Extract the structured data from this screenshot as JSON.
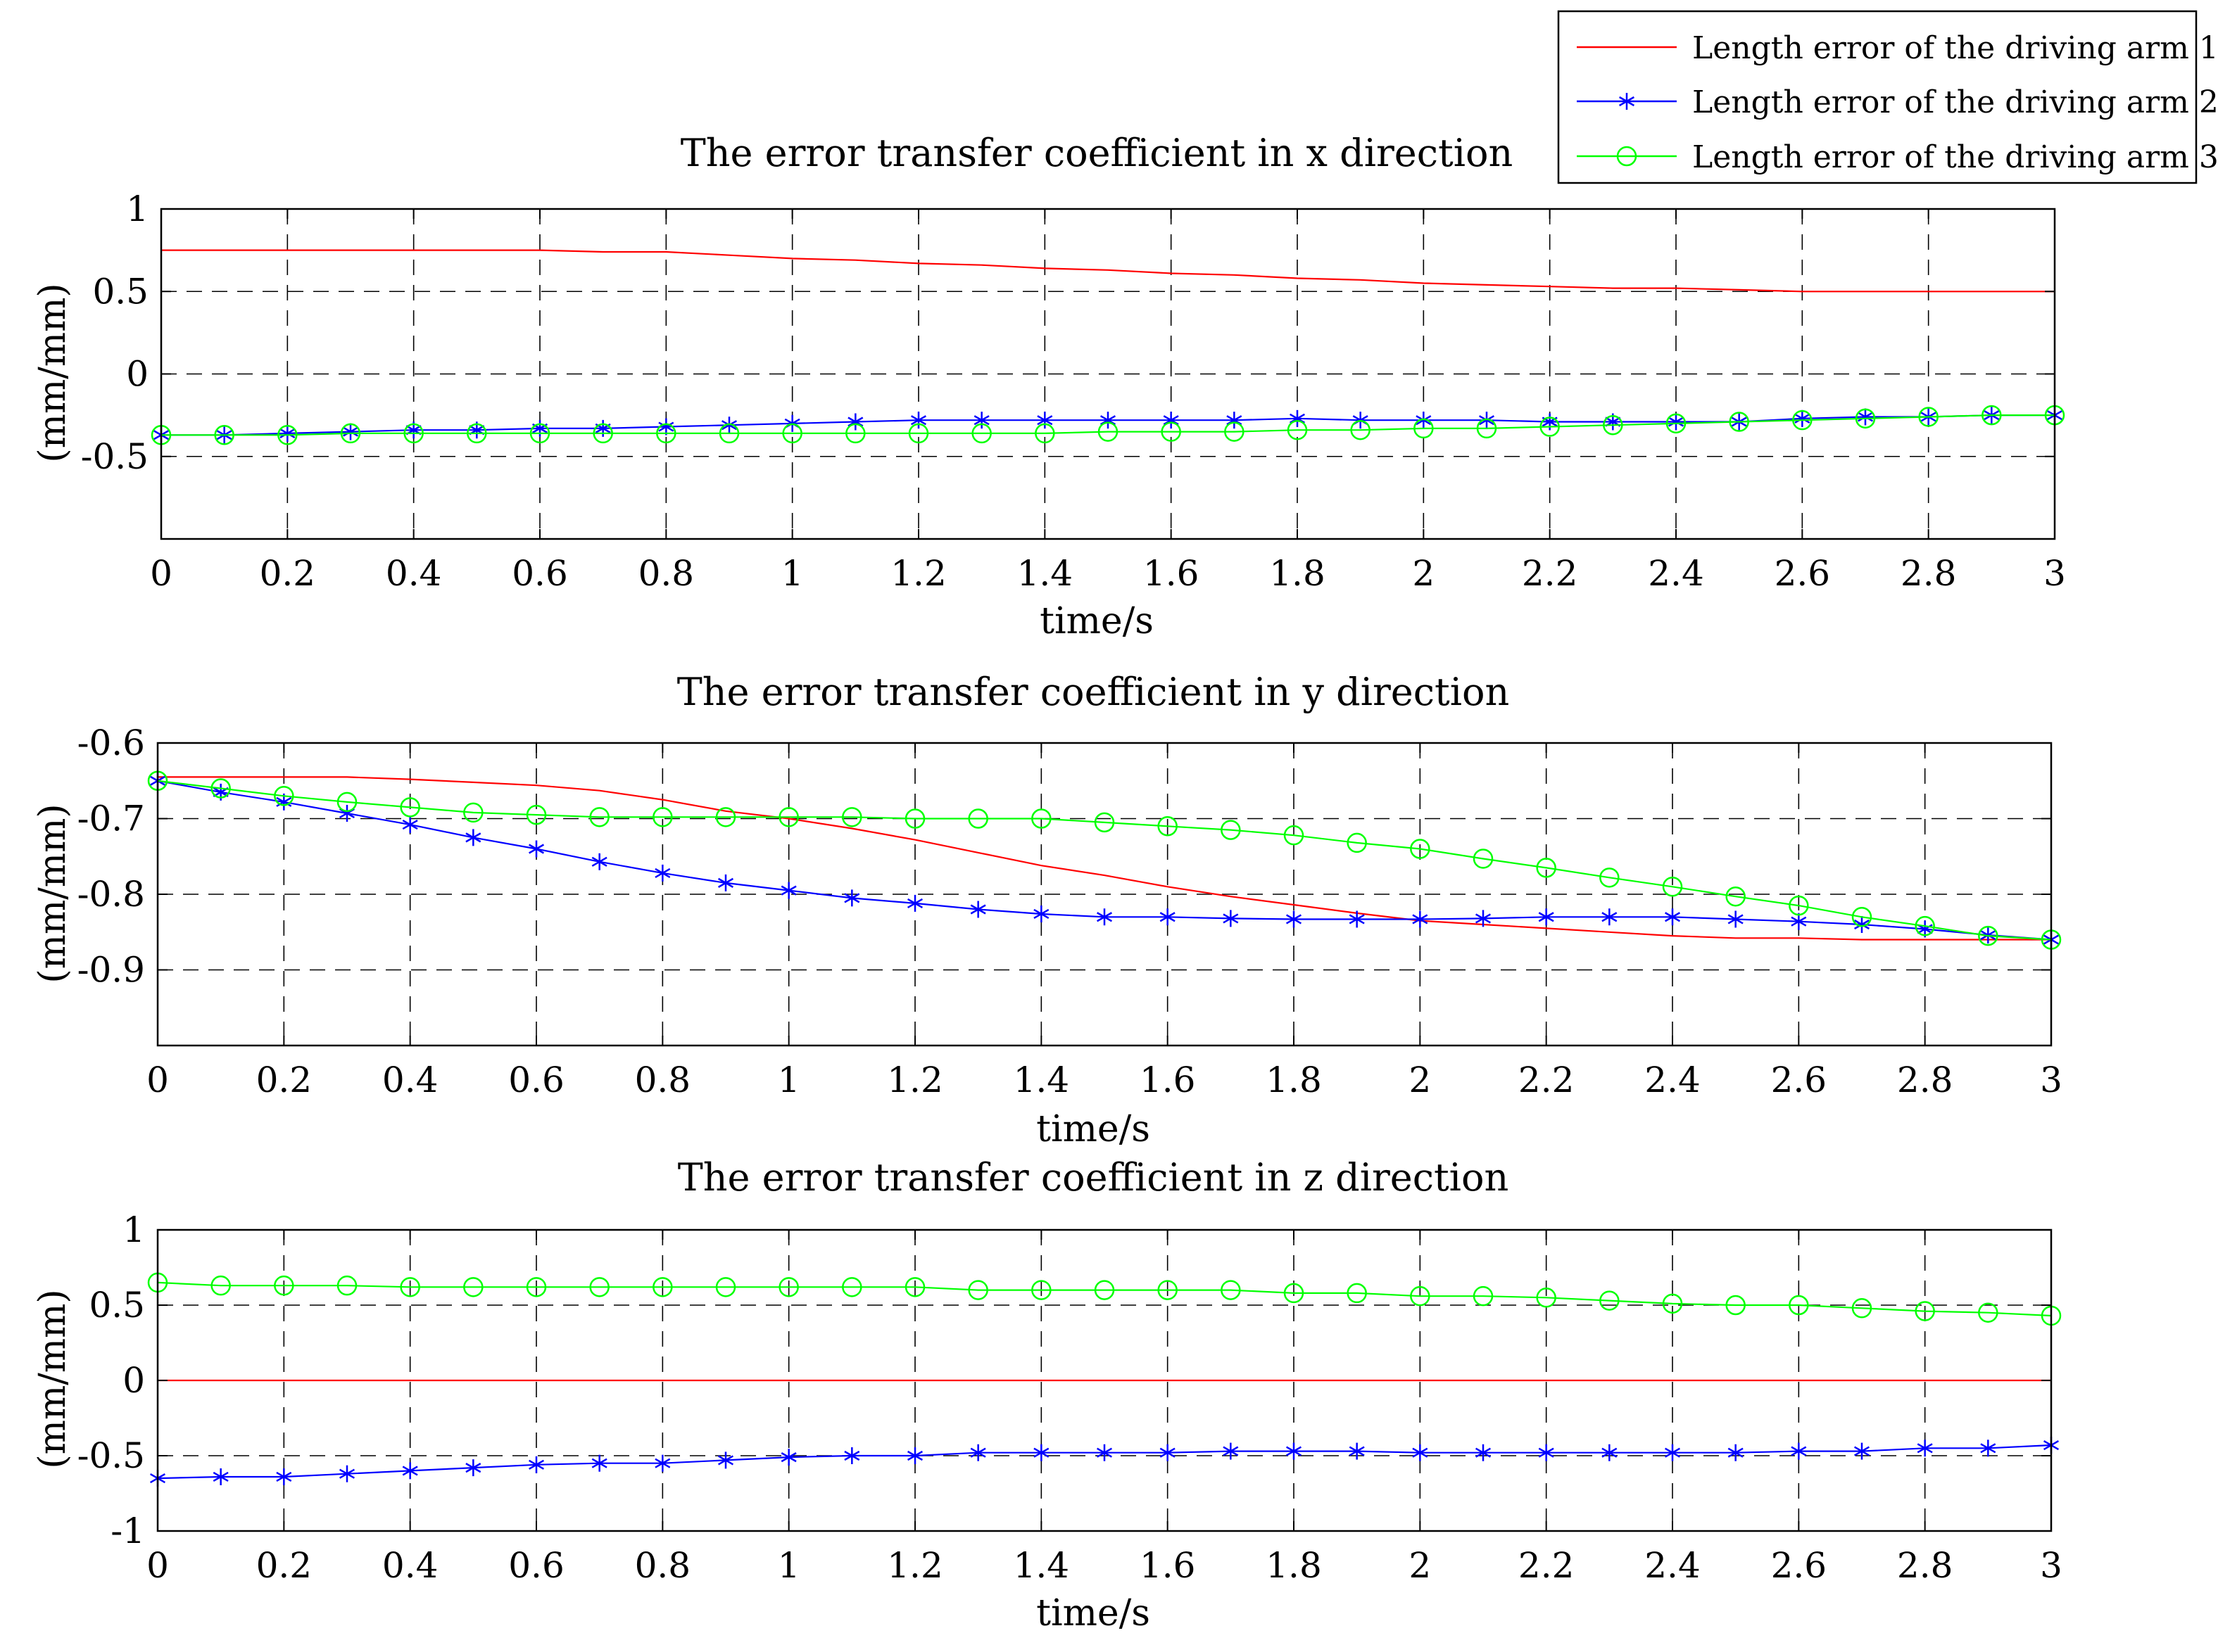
{
  "chart_data": [
    {
      "type": "line",
      "title": "The error transfer coefficient in x direction",
      "xlabel": "time/s",
      "ylabel": "(mm/mm)",
      "xlim": [
        0,
        3
      ],
      "ylim": [
        -1,
        1
      ],
      "grid": true,
      "x_ticks": [
        "0",
        "0.2",
        "0.4",
        "0.6",
        "0.8",
        "1",
        "1.2",
        "1.4",
        "1.6",
        "1.8",
        "2",
        "2.2",
        "2.4",
        "2.6",
        "2.8",
        "3"
      ],
      "y_ticks": [
        "1",
        "0.5",
        "0",
        "-0.5"
      ],
      "x": [
        0,
        0.1,
        0.2,
        0.3,
        0.4,
        0.5,
        0.6,
        0.7,
        0.8,
        0.9,
        1.0,
        1.1,
        1.2,
        1.3,
        1.4,
        1.5,
        1.6,
        1.7,
        1.8,
        1.9,
        2.0,
        2.1,
        2.2,
        2.3,
        2.4,
        2.5,
        2.6,
        2.7,
        2.8,
        2.9,
        3.0
      ],
      "series": [
        {
          "name": "Length error of the driving arm 1",
          "values": [
            0.75,
            0.75,
            0.75,
            0.75,
            0.75,
            0.75,
            0.75,
            0.74,
            0.74,
            0.72,
            0.7,
            0.69,
            0.67,
            0.66,
            0.64,
            0.63,
            0.61,
            0.6,
            0.58,
            0.57,
            0.55,
            0.54,
            0.53,
            0.52,
            0.52,
            0.51,
            0.5,
            0.5,
            0.5,
            0.5,
            0.5
          ]
        },
        {
          "name": "Length error of the driving arm 2",
          "values": [
            -0.37,
            -0.37,
            -0.36,
            -0.35,
            -0.34,
            -0.34,
            -0.33,
            -0.33,
            -0.32,
            -0.31,
            -0.3,
            -0.29,
            -0.28,
            -0.28,
            -0.28,
            -0.28,
            -0.28,
            -0.28,
            -0.27,
            -0.28,
            -0.28,
            -0.28,
            -0.29,
            -0.29,
            -0.29,
            -0.29,
            -0.27,
            -0.26,
            -0.26,
            -0.25,
            -0.25
          ]
        },
        {
          "name": "Length error of the driving arm 3",
          "values": [
            -0.37,
            -0.37,
            -0.37,
            -0.36,
            -0.36,
            -0.36,
            -0.36,
            -0.36,
            -0.36,
            -0.36,
            -0.36,
            -0.36,
            -0.36,
            -0.36,
            -0.36,
            -0.35,
            -0.35,
            -0.35,
            -0.34,
            -0.34,
            -0.33,
            -0.33,
            -0.32,
            -0.31,
            -0.3,
            -0.29,
            -0.28,
            -0.27,
            -0.26,
            -0.25,
            -0.25
          ]
        }
      ]
    },
    {
      "type": "line",
      "title": "The error transfer coefficient in y direction",
      "xlabel": "time/s",
      "ylabel": "(mm/mm)",
      "xlim": [
        0,
        3
      ],
      "ylim": [
        -1,
        -0.6
      ],
      "grid": true,
      "x_ticks": [
        "0",
        "0.2",
        "0.4",
        "0.6",
        "0.8",
        "1",
        "1.2",
        "1.4",
        "1.6",
        "1.8",
        "2",
        "2.2",
        "2.4",
        "2.6",
        "2.8",
        "3"
      ],
      "y_ticks": [
        "-0.6",
        "-0.7",
        "-0.8",
        "-0.9"
      ],
      "x": [
        0,
        0.1,
        0.2,
        0.3,
        0.4,
        0.5,
        0.6,
        0.7,
        0.8,
        0.9,
        1.0,
        1.1,
        1.2,
        1.3,
        1.4,
        1.5,
        1.6,
        1.7,
        1.8,
        1.9,
        2.0,
        2.1,
        2.2,
        2.3,
        2.4,
        2.5,
        2.6,
        2.7,
        2.8,
        2.9,
        3.0
      ],
      "series": [
        {
          "name": "Length error of the driving arm 1",
          "values": [
            -0.645,
            -0.645,
            -0.645,
            -0.645,
            -0.648,
            -0.652,
            -0.656,
            -0.663,
            -0.675,
            -0.69,
            -0.7,
            -0.713,
            -0.728,
            -0.745,
            -0.762,
            -0.775,
            -0.79,
            -0.803,
            -0.814,
            -0.825,
            -0.835,
            -0.84,
            -0.845,
            -0.85,
            -0.855,
            -0.858,
            -0.858,
            -0.86,
            -0.86,
            -0.86,
            -0.86
          ]
        },
        {
          "name": "Length error of the driving arm 2",
          "values": [
            -0.65,
            -0.665,
            -0.678,
            -0.693,
            -0.708,
            -0.725,
            -0.74,
            -0.757,
            -0.772,
            -0.785,
            -0.795,
            -0.805,
            -0.812,
            -0.82,
            -0.826,
            -0.83,
            -0.83,
            -0.832,
            -0.833,
            -0.833,
            -0.833,
            -0.832,
            -0.83,
            -0.83,
            -0.83,
            -0.833,
            -0.836,
            -0.84,
            -0.846,
            -0.854,
            -0.86
          ]
        },
        {
          "name": "Length error of the driving arm 3",
          "values": [
            -0.65,
            -0.66,
            -0.67,
            -0.678,
            -0.685,
            -0.692,
            -0.695,
            -0.698,
            -0.698,
            -0.698,
            -0.698,
            -0.698,
            -0.7,
            -0.7,
            -0.7,
            -0.705,
            -0.71,
            -0.715,
            -0.722,
            -0.732,
            -0.74,
            -0.753,
            -0.765,
            -0.778,
            -0.79,
            -0.803,
            -0.815,
            -0.83,
            -0.842,
            -0.855,
            -0.86
          ]
        }
      ]
    },
    {
      "type": "line",
      "title": "The error transfer coefficient in z direction",
      "xlabel": "time/s",
      "ylabel": "(mm/mm)",
      "xlim": [
        0,
        3
      ],
      "ylim": [
        -1,
        1
      ],
      "grid": true,
      "x_ticks": [
        "0",
        "0.2",
        "0.4",
        "0.6",
        "0.8",
        "1",
        "1.2",
        "1.4",
        "1.6",
        "1.8",
        "2",
        "2.2",
        "2.4",
        "2.6",
        "2.8",
        "3"
      ],
      "y_ticks": [
        "1",
        "0.5",
        "0",
        "-0.5",
        "-1"
      ],
      "x": [
        0,
        0.1,
        0.2,
        0.3,
        0.4,
        0.5,
        0.6,
        0.7,
        0.8,
        0.9,
        1.0,
        1.1,
        1.2,
        1.3,
        1.4,
        1.5,
        1.6,
        1.7,
        1.8,
        1.9,
        2.0,
        2.1,
        2.2,
        2.3,
        2.4,
        2.5,
        2.6,
        2.7,
        2.8,
        2.9,
        3.0
      ],
      "series": [
        {
          "name": "Length error of the driving arm 1",
          "values": [
            0,
            0,
            0,
            0,
            0,
            0,
            0,
            0,
            0,
            0,
            0,
            0,
            0,
            0,
            0,
            0,
            0,
            0,
            0,
            0,
            0,
            0,
            0,
            0,
            0,
            0,
            0,
            0,
            0,
            0,
            0
          ]
        },
        {
          "name": "Length error of the driving arm 2",
          "values": [
            -0.65,
            -0.64,
            -0.64,
            -0.62,
            -0.6,
            -0.58,
            -0.56,
            -0.55,
            -0.55,
            -0.53,
            -0.51,
            -0.5,
            -0.5,
            -0.48,
            -0.48,
            -0.48,
            -0.48,
            -0.47,
            -0.47,
            -0.47,
            -0.48,
            -0.48,
            -0.48,
            -0.48,
            -0.48,
            -0.48,
            -0.47,
            -0.47,
            -0.45,
            -0.45,
            -0.43
          ]
        },
        {
          "name": "Length error of the driving arm 3",
          "values": [
            0.65,
            0.63,
            0.63,
            0.63,
            0.62,
            0.62,
            0.62,
            0.62,
            0.62,
            0.62,
            0.62,
            0.62,
            0.62,
            0.6,
            0.6,
            0.6,
            0.6,
            0.6,
            0.58,
            0.58,
            0.56,
            0.56,
            0.55,
            0.53,
            0.51,
            0.5,
            0.5,
            0.48,
            0.46,
            0.45,
            0.43
          ]
        }
      ]
    }
  ],
  "legend": {
    "placement": "top-right",
    "entries": [
      {
        "label": "Length error of the driving arm 1",
        "color": "#ff0000",
        "marker": "none"
      },
      {
        "label": "Length error of the driving arm 2",
        "color": "#0000ff",
        "marker": "asterisk"
      },
      {
        "label": "Length error of the driving arm 3",
        "color": "#00ff00",
        "marker": "circle"
      }
    ]
  }
}
